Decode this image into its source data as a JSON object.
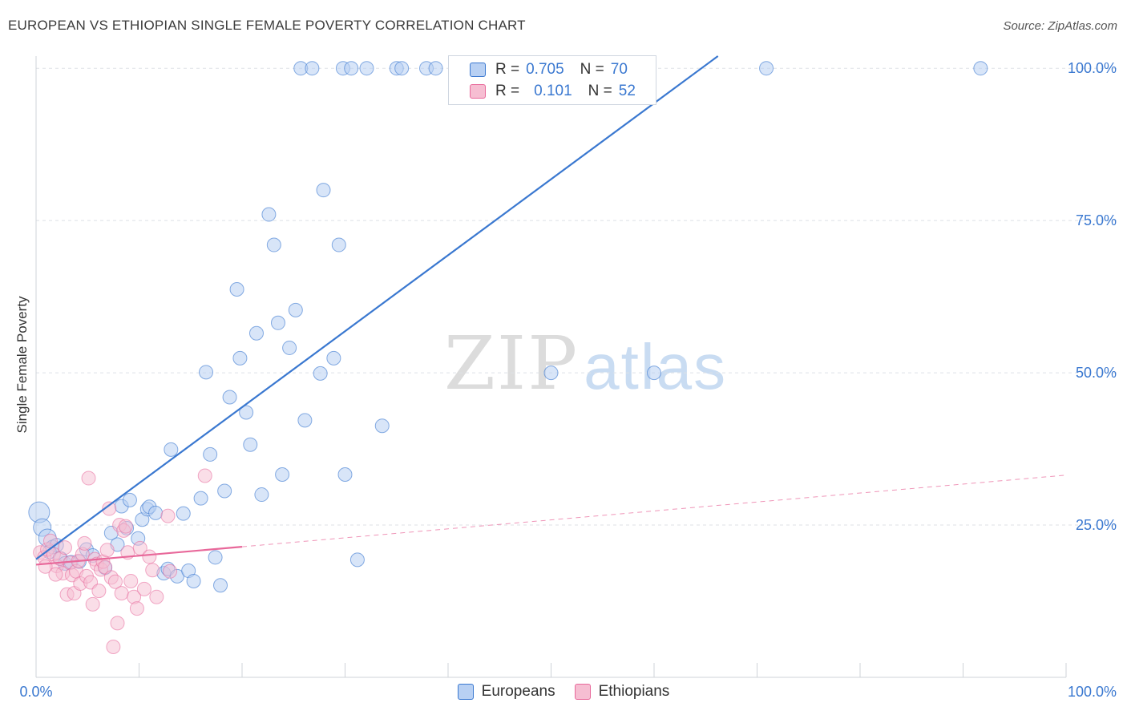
{
  "title": "EUROPEAN VS ETHIOPIAN SINGLE FEMALE POVERTY CORRELATION CHART",
  "source": "Source: ZipAtlas.com",
  "watermark": {
    "zip": "ZIP",
    "atlas": "atlas"
  },
  "legend": {
    "rows": [
      {
        "r_label": "R =",
        "r_value": "0.705",
        "n_label": "N =",
        "n_value": "70"
      },
      {
        "r_label": "R =",
        "r_value": "0.101",
        "n_label": "N =",
        "n_value": "52"
      }
    ]
  },
  "colors": {
    "european": "#3a78d0",
    "european_fill": "#b8d0f3",
    "ethiopian": "#e8689a",
    "ethiopian_fill": "#f6bed2",
    "axis_value": "#3a78d0"
  },
  "chart_data": {
    "type": "scatter",
    "title": "EUROPEAN VS ETHIOPIAN SINGLE FEMALE POVERTY CORRELATION CHART",
    "xlabel": "",
    "ylabel": "Single Female Poverty",
    "xlim": [
      0,
      100
    ],
    "ylim": [
      0,
      102
    ],
    "x_tick_labels": [
      "0.0%",
      "100.0%"
    ],
    "y_ticks": [
      25,
      50,
      75,
      100
    ],
    "y_tick_labels": [
      "25.0%",
      "50.0%",
      "75.0%",
      "100.0%"
    ],
    "grid": true,
    "legend_placement": "top-center",
    "series": [
      {
        "name": "Europeans",
        "r": 0.705,
        "n": 70,
        "trend": {
          "x1": 0,
          "y1": 19.4,
          "x2": 66.2,
          "y2": 102
        },
        "points": [
          [
            0.3,
            27.1
          ],
          [
            0.6,
            24.6
          ],
          [
            1.1,
            22.9
          ],
          [
            1.6,
            21.4
          ],
          [
            2.0,
            21.7
          ],
          [
            2.4,
            19.5
          ],
          [
            2.8,
            18.7
          ],
          [
            3.4,
            18.9
          ],
          [
            4.2,
            19.0
          ],
          [
            4.9,
            21.0
          ],
          [
            5.5,
            20.0
          ],
          [
            6.7,
            18.0
          ],
          [
            7.3,
            23.7
          ],
          [
            7.9,
            21.8
          ],
          [
            8.3,
            28.1
          ],
          [
            8.8,
            24.5
          ],
          [
            9.1,
            29.1
          ],
          [
            9.9,
            22.8
          ],
          [
            10.3,
            25.9
          ],
          [
            10.8,
            27.6
          ],
          [
            11.0,
            28.0
          ],
          [
            11.6,
            27.0
          ],
          [
            12.4,
            17.1
          ],
          [
            12.8,
            17.8
          ],
          [
            13.1,
            37.4
          ],
          [
            13.7,
            16.6
          ],
          [
            14.3,
            26.9
          ],
          [
            14.8,
            17.5
          ],
          [
            15.3,
            15.8
          ],
          [
            16.0,
            29.4
          ],
          [
            16.5,
            50.1
          ],
          [
            16.9,
            36.6
          ],
          [
            17.4,
            19.7
          ],
          [
            17.9,
            15.1
          ],
          [
            18.3,
            30.6
          ],
          [
            18.8,
            46.0
          ],
          [
            19.5,
            63.7
          ],
          [
            19.8,
            52.4
          ],
          [
            20.4,
            43.5
          ],
          [
            20.8,
            38.2
          ],
          [
            21.4,
            56.5
          ],
          [
            21.9,
            30.0
          ],
          [
            22.6,
            76.0
          ],
          [
            23.1,
            71.0
          ],
          [
            23.5,
            58.2
          ],
          [
            23.9,
            33.3
          ],
          [
            24.6,
            54.1
          ],
          [
            25.2,
            60.3
          ],
          [
            25.7,
            100
          ],
          [
            26.1,
            42.2
          ],
          [
            26.8,
            100
          ],
          [
            27.6,
            49.9
          ],
          [
            27.9,
            80.0
          ],
          [
            28.9,
            52.4
          ],
          [
            29.4,
            71.0
          ],
          [
            29.8,
            100
          ],
          [
            30.0,
            33.3
          ],
          [
            30.6,
            100
          ],
          [
            31.2,
            19.3
          ],
          [
            32.1,
            100
          ],
          [
            33.6,
            41.3
          ],
          [
            35.0,
            100
          ],
          [
            35.5,
            100
          ],
          [
            37.9,
            100
          ],
          [
            38.8,
            100
          ],
          [
            50.0,
            50.0
          ],
          [
            60.0,
            50.0
          ],
          [
            70.9,
            100
          ],
          [
            91.7,
            100
          ],
          [
            1.3,
            20.6
          ]
        ]
      },
      {
        "name": "Ethiopians",
        "r": 0.101,
        "n": 52,
        "trend": {
          "x1": 0,
          "y1": 18.5,
          "x2": 100,
          "y2": 33.2,
          "solid_until": 20
        },
        "points": [
          [
            0.4,
            20.5
          ],
          [
            0.8,
            19.7
          ],
          [
            1.1,
            21.0
          ],
          [
            1.4,
            22.4
          ],
          [
            1.7,
            20.2
          ],
          [
            2.0,
            18.3
          ],
          [
            2.3,
            19.5
          ],
          [
            2.6,
            17.1
          ],
          [
            2.8,
            21.3
          ],
          [
            3.0,
            13.6
          ],
          [
            3.3,
            18.8
          ],
          [
            3.5,
            16.8
          ],
          [
            3.7,
            13.8
          ],
          [
            3.9,
            17.4
          ],
          [
            4.1,
            19.1
          ],
          [
            4.3,
            15.4
          ],
          [
            4.5,
            20.2
          ],
          [
            4.7,
            22.0
          ],
          [
            4.9,
            16.6
          ],
          [
            5.1,
            32.7
          ],
          [
            5.3,
            15.6
          ],
          [
            5.5,
            12.0
          ],
          [
            5.7,
            19.4
          ],
          [
            5.9,
            18.6
          ],
          [
            6.1,
            14.2
          ],
          [
            6.3,
            17.7
          ],
          [
            6.5,
            19.0
          ],
          [
            6.7,
            18.1
          ],
          [
            6.9,
            20.9
          ],
          [
            7.1,
            27.7
          ],
          [
            7.3,
            16.4
          ],
          [
            7.5,
            5.0
          ],
          [
            7.7,
            15.7
          ],
          [
            7.9,
            8.9
          ],
          [
            8.1,
            25.0
          ],
          [
            8.3,
            13.8
          ],
          [
            8.5,
            24.1
          ],
          [
            8.7,
            24.8
          ],
          [
            8.9,
            20.5
          ],
          [
            9.2,
            15.8
          ],
          [
            9.5,
            13.2
          ],
          [
            9.8,
            11.3
          ],
          [
            10.1,
            21.2
          ],
          [
            10.5,
            14.5
          ],
          [
            11.0,
            19.8
          ],
          [
            11.3,
            17.6
          ],
          [
            11.7,
            13.2
          ],
          [
            12.8,
            26.5
          ],
          [
            13.0,
            17.4
          ],
          [
            16.4,
            33.1
          ],
          [
            0.9,
            18.2
          ],
          [
            1.9,
            16.9
          ]
        ]
      }
    ]
  },
  "bottom_legend": {
    "european": "Europeans",
    "ethiopian": "Ethiopians"
  }
}
